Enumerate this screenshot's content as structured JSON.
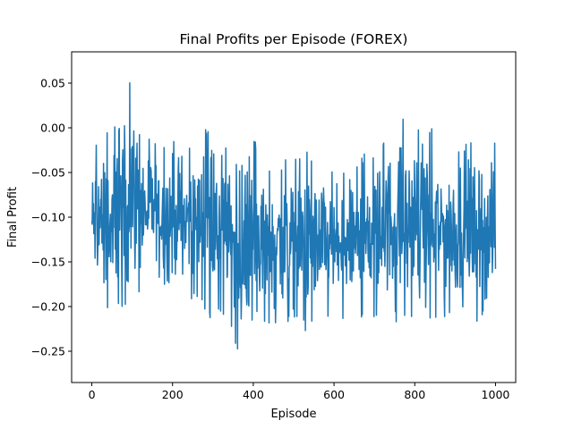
{
  "chart_data": {
    "type": "line",
    "title": "Final Profits per Episode (FOREX)",
    "xlabel": "Episode",
    "ylabel": "Final Profit",
    "xlim": [
      -50,
      1050
    ],
    "ylim": [
      -0.285,
      0.085
    ],
    "x_ticks": [
      0,
      200,
      400,
      600,
      800,
      1000
    ],
    "x_tick_labels": [
      "0",
      "200",
      "400",
      "600",
      "800",
      "1000"
    ],
    "y_ticks": [
      0.05,
      0.0,
      -0.05,
      -0.1,
      -0.15,
      -0.2,
      -0.25
    ],
    "y_tick_labels": [
      "0.05",
      "0.00",
      "−0.05",
      "−0.10",
      "−0.15",
      "−0.20",
      "−0.25"
    ],
    "grid": false,
    "series": [
      {
        "color": "#1f77b4",
        "x_start": 0,
        "x_step": 20,
        "envelope_max": [
          -0.02,
          0.005,
          0.005,
          0.005,
          0.008,
          0.07,
          0.0,
          0.0,
          -0.01,
          -0.02,
          -0.01,
          -0.03,
          -0.015,
          -0.005,
          0.015,
          -0.03,
          -0.02,
          -0.02,
          -0.03,
          -0.05,
          -0.01,
          -0.03,
          -0.04,
          -0.04,
          -0.03,
          -0.04,
          -0.02,
          -0.03,
          -0.035,
          -0.04,
          -0.05,
          -0.05,
          -0.04,
          -0.03,
          -0.02,
          -0.02,
          -0.005,
          0.005,
          0.018,
          0.005,
          0.0,
          -0.005,
          0.0,
          -0.01,
          -0.005,
          -0.02,
          -0.005,
          -0.01,
          -0.005,
          -0.02,
          0.0
        ],
        "envelope_min": [
          -0.2,
          -0.2,
          -0.23,
          -0.2,
          -0.2,
          -0.2,
          -0.19,
          -0.18,
          -0.17,
          -0.18,
          -0.17,
          -0.18,
          -0.19,
          -0.2,
          -0.21,
          -0.22,
          -0.21,
          -0.22,
          -0.265,
          -0.24,
          -0.22,
          -0.22,
          -0.22,
          -0.22,
          -0.22,
          -0.22,
          -0.23,
          -0.23,
          -0.22,
          -0.22,
          -0.22,
          -0.22,
          -0.22,
          -0.22,
          -0.22,
          -0.22,
          -0.22,
          -0.22,
          -0.22,
          -0.22,
          -0.22,
          -0.22,
          -0.23,
          -0.22,
          -0.22,
          -0.22,
          -0.22,
          -0.22,
          -0.22,
          -0.22,
          -0.22
        ]
      }
    ]
  }
}
